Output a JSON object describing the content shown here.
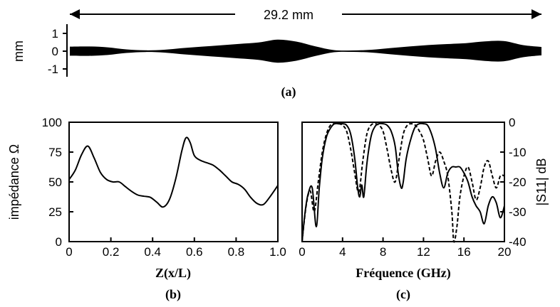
{
  "figure": {
    "panel_labels": {
      "a": "(a)",
      "b": "(b)",
      "c": "(c)"
    }
  },
  "chart_data": [
    {
      "panel": "(a)",
      "type": "area",
      "title": "",
      "ylabel": "mm",
      "dimension_label": "29.2 mm",
      "yticks": [
        1,
        0,
        -1
      ],
      "ylim": [
        -1.3,
        1.5
      ],
      "x": [
        0,
        0.04,
        0.08,
        0.12,
        0.16,
        0.2,
        0.24,
        0.28,
        0.32,
        0.36,
        0.4,
        0.44,
        0.48,
        0.52,
        0.56,
        0.6,
        0.64,
        0.68,
        0.72,
        0.76,
        0.8,
        0.84,
        0.88,
        0.92,
        0.96,
        1.0
      ],
      "half_width": [
        0.26,
        0.27,
        0.22,
        0.1,
        0.05,
        0.08,
        0.18,
        0.26,
        0.34,
        0.42,
        0.5,
        0.66,
        0.55,
        0.28,
        0.06,
        0.04,
        0.08,
        0.18,
        0.27,
        0.35,
        0.41,
        0.46,
        0.56,
        0.58,
        0.35,
        0.24
      ],
      "fill_color": "#000000"
    },
    {
      "panel": "(b)",
      "type": "line",
      "title": "",
      "xlabel": "Z(x/L)",
      "ylabel": "impédance  Ω",
      "xlim": [
        0,
        1
      ],
      "ylim": [
        0,
        100
      ],
      "xticks": [
        "0",
        "0.2",
        "0.4",
        "0.6",
        "0.8",
        "1.0"
      ],
      "yticks": [
        "0",
        "25",
        "50",
        "75",
        "100"
      ],
      "series": [
        {
          "x": [
            0,
            0.03,
            0.06,
            0.09,
            0.12,
            0.15,
            0.18,
            0.21,
            0.24,
            0.27,
            0.3,
            0.33,
            0.36,
            0.39,
            0.42,
            0.45,
            0.48,
            0.51,
            0.54,
            0.56,
            0.58,
            0.6,
            0.63,
            0.66,
            0.69,
            0.72,
            0.75,
            0.78,
            0.81,
            0.84,
            0.87,
            0.9,
            0.93,
            0.96,
            1.0
          ],
          "y": [
            52,
            60,
            73,
            80,
            70,
            58,
            52,
            50,
            50,
            46,
            42,
            39,
            38,
            37,
            33,
            29,
            35,
            52,
            76,
            87,
            83,
            72,
            68,
            66,
            64,
            60,
            55,
            50,
            48,
            44,
            37,
            32,
            31,
            37,
            47
          ]
        }
      ],
      "grid": false
    },
    {
      "panel": "(c)",
      "type": "line",
      "title": "",
      "xlabel": "Fréquence (GHz)",
      "ylabel": "|S11|  dB",
      "xlim": [
        0,
        20
      ],
      "ylim": [
        -40,
        0
      ],
      "xticks": [
        "0",
        "4",
        "8",
        "12",
        "16",
        "20"
      ],
      "yticks": [
        "0",
        "-10",
        "-20",
        "-30",
        "-40"
      ],
      "series": [
        {
          "style": "solid",
          "x": [
            0,
            0.3,
            0.6,
            1.0,
            1.4,
            1.7,
            2.0,
            2.4,
            2.8,
            3.2,
            3.6,
            4.0,
            4.4,
            4.8,
            5.2,
            5.5,
            5.7,
            5.9,
            6.1,
            6.4,
            6.8,
            7.2,
            7.6,
            8.0,
            8.4,
            8.8,
            9.2,
            9.5,
            9.8,
            10.0,
            10.3,
            10.8,
            11.2,
            11.6,
            12.0,
            12.4,
            12.8,
            13.2,
            13.6,
            14.0,
            14.4,
            14.8,
            15.2,
            15.6,
            16.0,
            16.4,
            16.8,
            17.2,
            17.6,
            18.0,
            18.4,
            18.8,
            19.2,
            19.6,
            20.0
          ],
          "y": [
            -40,
            -30,
            -24,
            -22,
            -35,
            -22,
            -12,
            -5,
            -2,
            -0.5,
            -0.5,
            -0.5,
            -1,
            -4,
            -12,
            -22,
            -25,
            -21,
            -25,
            -14,
            -5,
            -1.5,
            -0.5,
            -0.5,
            -1,
            -3,
            -8,
            -17,
            -22,
            -20,
            -12,
            -5,
            -1.5,
            -0.5,
            -0.5,
            -1,
            -4,
            -9,
            -17,
            -22,
            -17,
            -15,
            -15,
            -15,
            -17,
            -20,
            -25,
            -28,
            -30,
            -34,
            -28,
            -25,
            -27,
            -32,
            -28
          ]
        },
        {
          "style": "dashed",
          "x": [
            0,
            0.4,
            0.8,
            1.2,
            1.6,
            2.0,
            2.4,
            2.8,
            3.2,
            3.6,
            4.0,
            4.4,
            4.8,
            5.2,
            5.5,
            5.7,
            6.0,
            6.4,
            6.8,
            7.2,
            7.6,
            8.0,
            8.4,
            8.8,
            9.2,
            9.6,
            10.0,
            10.4,
            10.8,
            11.2,
            11.6,
            12.0,
            12.4,
            12.8,
            13.2,
            13.6,
            14.0,
            14.4,
            14.8,
            15.0,
            15.3,
            15.6,
            16.0,
            16.4,
            16.8,
            17.2,
            17.6,
            18.0,
            18.4,
            18.8,
            19.2,
            19.6,
            20.0
          ],
          "y": [
            -40,
            -28,
            -23,
            -30,
            -20,
            -10,
            -4,
            -1,
            -0.5,
            -0.5,
            -1,
            -3,
            -9,
            -17,
            -23,
            -22,
            -13,
            -4,
            -1,
            -0.5,
            -1,
            -3,
            -9,
            -16,
            -20,
            -12,
            -4,
            -1,
            -0.5,
            -1,
            -3,
            -6,
            -12,
            -18,
            -13,
            -10,
            -13,
            -18,
            -30,
            -40,
            -35,
            -25,
            -18,
            -15,
            -20,
            -26,
            -22,
            -15,
            -13,
            -18,
            -22,
            -18,
            -18
          ]
        }
      ],
      "grid": false
    }
  ]
}
